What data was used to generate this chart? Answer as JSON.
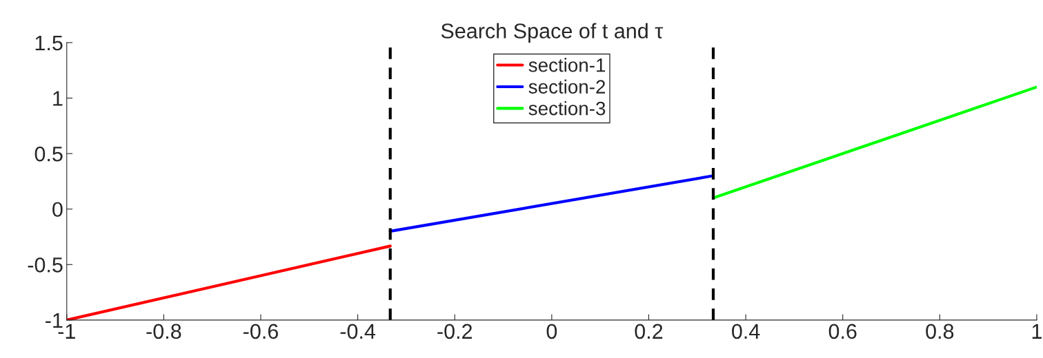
{
  "chart_data": {
    "type": "line",
    "title": "Search Space of t and τ",
    "series": [
      {
        "name": "section-1",
        "color": "#ff0000",
        "x": [
          -1,
          -0.333
        ],
        "values": [
          -1,
          -0.333
        ]
      },
      {
        "name": "section-2",
        "color": "#0000ff",
        "x": [
          -0.333,
          0.333
        ],
        "values": [
          -0.2,
          0.3
        ]
      },
      {
        "name": "section-3",
        "color": "#00ff00",
        "x": [
          0.333,
          1
        ],
        "values": [
          0.1,
          1.1
        ]
      }
    ],
    "xlim": [
      -1,
      1
    ],
    "xticks": [
      -1,
      -0.8,
      -0.6,
      -0.4,
      -0.2,
      0,
      0.2,
      0.4,
      0.6,
      0.8,
      1
    ],
    "ylim": [
      -1,
      1.5
    ],
    "yticks": [
      -1,
      -0.5,
      0,
      0.5,
      1,
      1.5
    ],
    "ref_lines": [
      {
        "axis": "x",
        "value": -0.333,
        "color": "#000000",
        "line_style": "dashed"
      },
      {
        "axis": "x",
        "value": 0.333,
        "color": "#000000",
        "line_style": "dashed"
      }
    ],
    "grid": false,
    "legend": "top",
    "line_style": "solid",
    "marker": "none"
  }
}
